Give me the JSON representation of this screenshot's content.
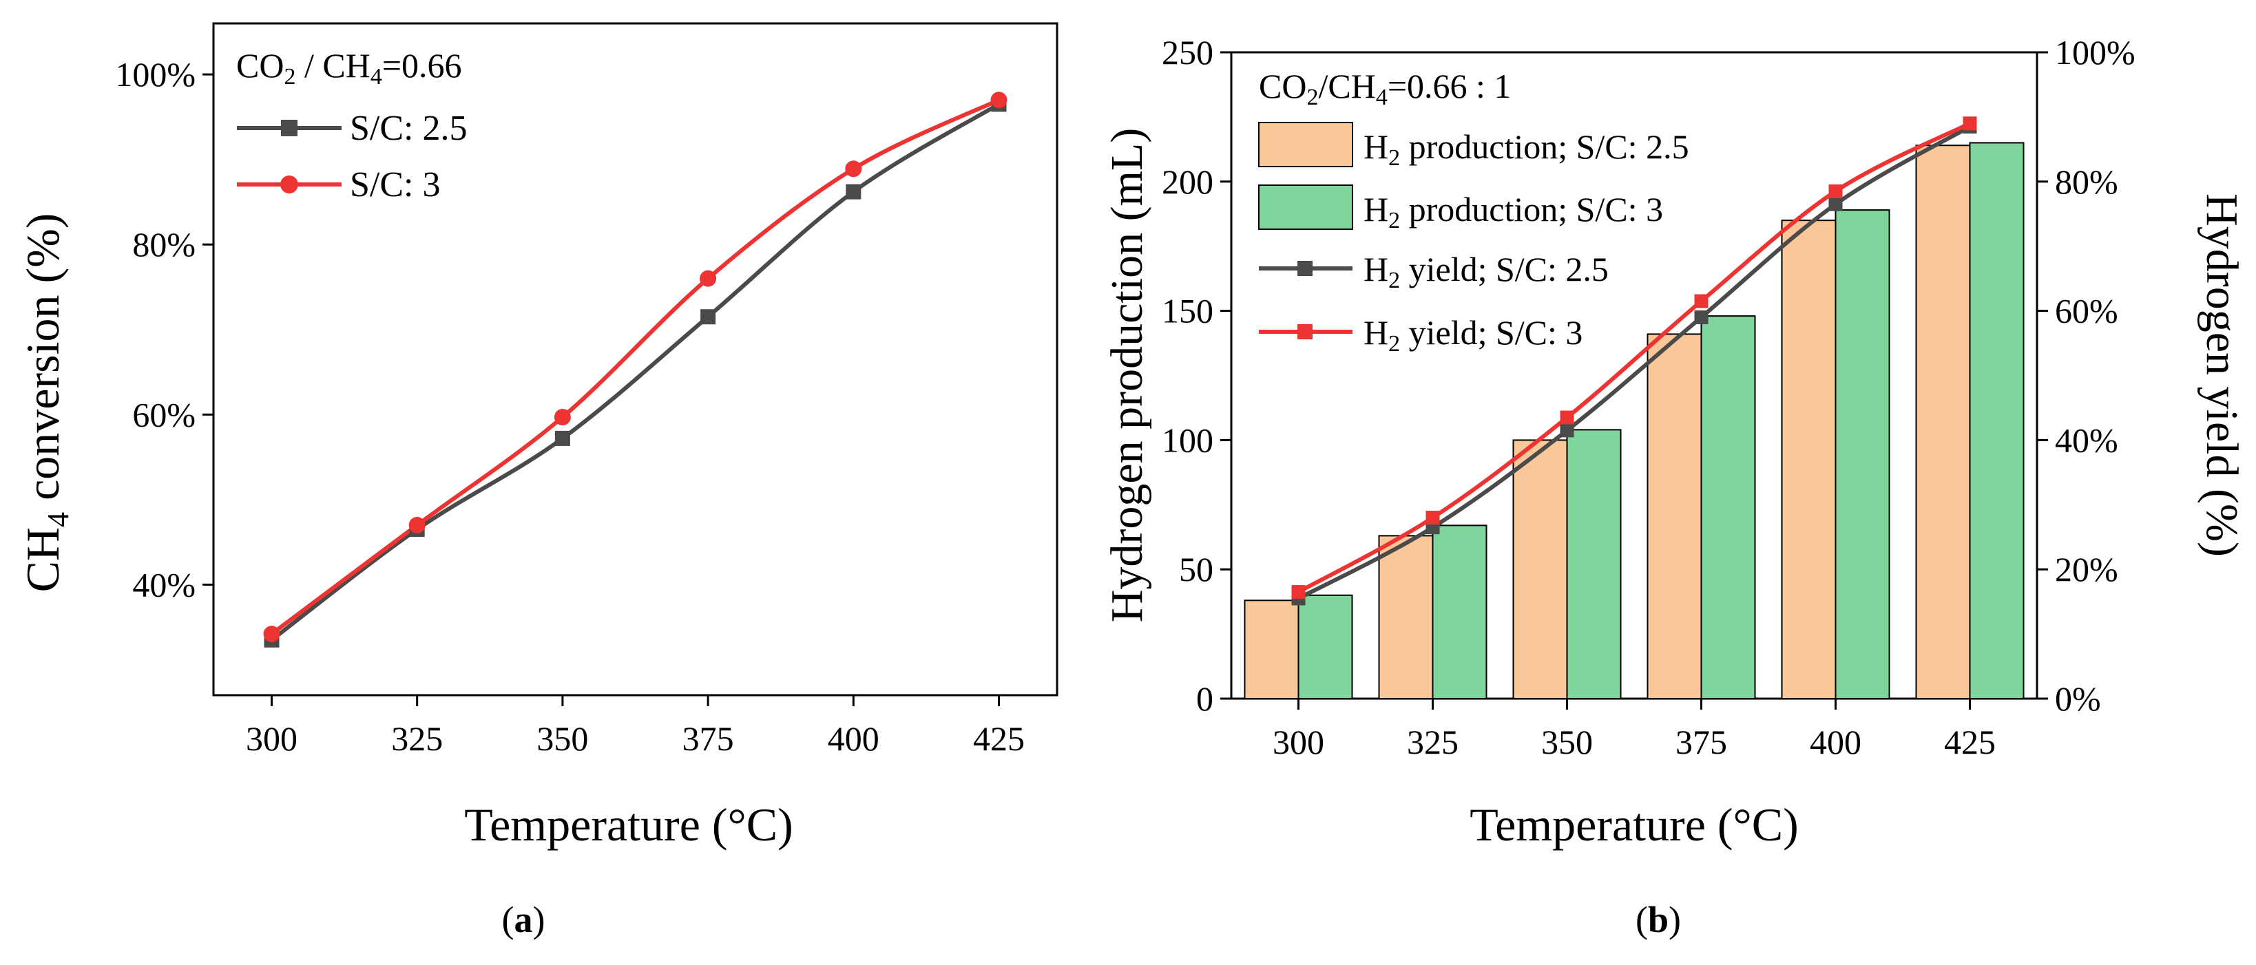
{
  "chart_data": [
    {
      "type": "line",
      "panel_label": "a",
      "annotation": "CO2 / CH4=0.66",
      "xlabel": "Temperature (°C)",
      "ylabel": "CH4 conversion (%)",
      "x": [
        300,
        325,
        350,
        375,
        400,
        425
      ],
      "xlim": [
        290,
        435
      ],
      "ylim": [
        27,
        106
      ],
      "x_ticks": [
        "300",
        "325",
        "350",
        "375",
        "400",
        "425"
      ],
      "y_ticks": [
        40,
        60,
        80,
        100
      ],
      "y_tick_labels": [
        "40%",
        "60%",
        "80%",
        "100%"
      ],
      "legend": "top-left",
      "grid": false,
      "series": [
        {
          "name": "S/C: 2.5",
          "color": "#4a4a4a",
          "marker": "square",
          "values": [
            33.5,
            46.5,
            57.2,
            71.5,
            86.2,
            96.5
          ]
        },
        {
          "name": "S/C: 3",
          "color": "#ee3333",
          "marker": "circle",
          "values": [
            34.2,
            47.0,
            59.7,
            76.0,
            88.9,
            97.0
          ]
        }
      ]
    },
    {
      "type": "bar",
      "panel_label": "b",
      "annotation": "CO2/CH4=0.66 : 1",
      "xlabel": "Temperature (°C)",
      "ylabel": "Hydrogen production (mL)",
      "y2label": "Hydrogen yield (%)",
      "categories": [
        "300",
        "325",
        "350",
        "375",
        "400",
        "425"
      ],
      "ylim": [
        0,
        250
      ],
      "y_ticks": [
        "0",
        "50",
        "100",
        "150",
        "200",
        "250"
      ],
      "y2lim": [
        0,
        100
      ],
      "y2_ticks": [
        "0%",
        "20%",
        "40%",
        "60%",
        "80%",
        "100%"
      ],
      "legend": "top-left",
      "grid": false,
      "bar_series": [
        {
          "name": "H2 production; S/C: 2.5",
          "color": "#fac898",
          "values": [
            38,
            63,
            100,
            141,
            185,
            214
          ]
        },
        {
          "name": "H2 production; S/C: 3",
          "color": "#7fd69c",
          "values": [
            40,
            67,
            104,
            148,
            189,
            215
          ]
        }
      ],
      "line_series": [
        {
          "name": "H2 yield; S/C: 2.5",
          "color": "#4a4a4a",
          "marker": "square",
          "axis": "right",
          "values": [
            15.5,
            26.5,
            41.5,
            59,
            76.5,
            88.5
          ]
        },
        {
          "name": "H2 yield; S/C: 3",
          "color": "#ee3333",
          "marker": "square",
          "axis": "right",
          "values": [
            16.5,
            28,
            43.5,
            61.5,
            78.5,
            89
          ]
        }
      ]
    }
  ]
}
